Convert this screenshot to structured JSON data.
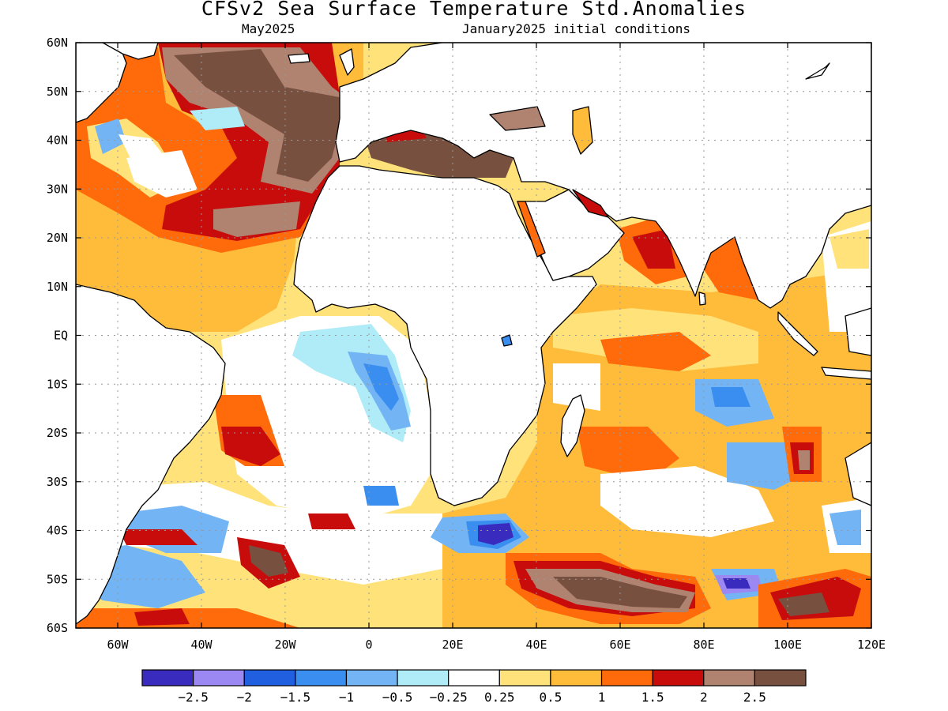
{
  "header": {
    "title": "CFSv2 Sea Surface Temperature Std.Anomalies",
    "valid_month": "May2025",
    "initial_conditions": "January2025 initial conditions"
  },
  "map": {
    "lon_range": [
      -70,
      120
    ],
    "lat_range": [
      -60,
      60
    ],
    "lat_ticks": [
      {
        "label": "60N",
        "lat": 60
      },
      {
        "label": "50N",
        "lat": 50
      },
      {
        "label": "40N",
        "lat": 40
      },
      {
        "label": "30N",
        "lat": 30
      },
      {
        "label": "20N",
        "lat": 20
      },
      {
        "label": "10N",
        "lat": 10
      },
      {
        "label": "EQ",
        "lat": 0
      },
      {
        "label": "10S",
        "lat": -10
      },
      {
        "label": "20S",
        "lat": -20
      },
      {
        "label": "30S",
        "lat": -30
      },
      {
        "label": "40S",
        "lat": -40
      },
      {
        "label": "50S",
        "lat": -50
      },
      {
        "label": "60S",
        "lat": -60
      }
    ],
    "lon_ticks": [
      {
        "label": "60W",
        "lon": -60
      },
      {
        "label": "40W",
        "lon": -40
      },
      {
        "label": "20W",
        "lon": -20
      },
      {
        "label": "0",
        "lon": 0
      },
      {
        "label": "20E",
        "lon": 20
      },
      {
        "label": "40E",
        "lon": 40
      },
      {
        "label": "60E",
        "lon": 60
      },
      {
        "label": "80E",
        "lon": 80
      },
      {
        "label": "100E",
        "lon": 100
      },
      {
        "label": "120E",
        "lon": 120
      }
    ]
  },
  "colorbar": {
    "colors": [
      "#3a2bbf",
      "#9c88f2",
      "#1f5fe0",
      "#3a8ef0",
      "#73b4f5",
      "#b0ecf8",
      "#ffffff",
      "#ffe27a",
      "#ffbb3a",
      "#ff6a0a",
      "#c80c0c",
      "#b08270",
      "#78503f"
    ],
    "labels": [
      "−2.5",
      "−2",
      "−1.5",
      "−1",
      "−0.5",
      "−0.25",
      "0.25",
      "0.5",
      "1",
      "1.5",
      "2",
      "2.5"
    ]
  }
}
